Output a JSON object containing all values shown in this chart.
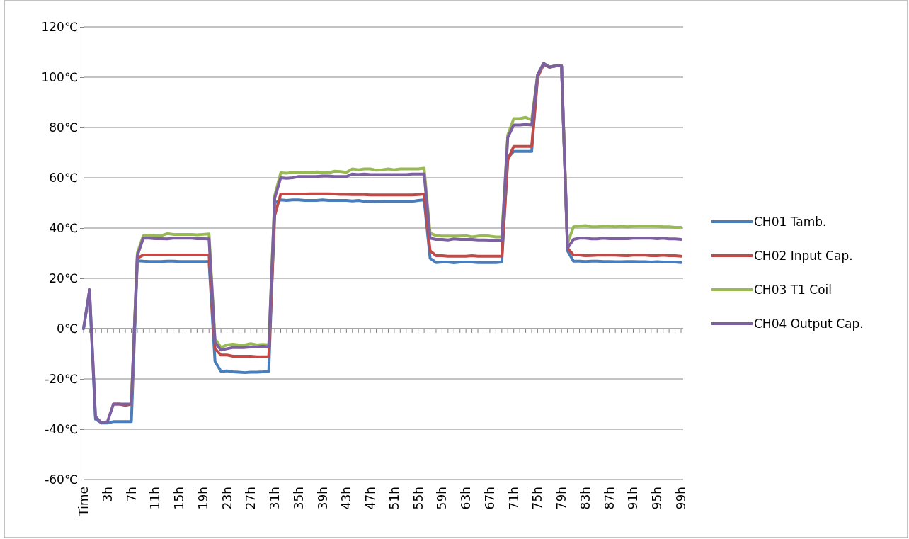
{
  "chart_data": {
    "type": "line",
    "categories": [
      "Time",
      null,
      null,
      null,
      "3h",
      null,
      null,
      null,
      "7h",
      null,
      null,
      null,
      "11h",
      null,
      null,
      null,
      "15h",
      null,
      null,
      null,
      "19h",
      null,
      null,
      null,
      "23h",
      null,
      null,
      null,
      "27h",
      null,
      null,
      null,
      "31h",
      null,
      null,
      null,
      "35h",
      null,
      null,
      null,
      "39h",
      null,
      null,
      null,
      "43h",
      null,
      null,
      null,
      "47h",
      null,
      null,
      null,
      "51h",
      null,
      null,
      null,
      "55h",
      null,
      null,
      null,
      "59h",
      null,
      null,
      null,
      "63h",
      null,
      null,
      null,
      "67h",
      null,
      null,
      null,
      "71h",
      null,
      null,
      null,
      "75h",
      null,
      null,
      null,
      "79h",
      null,
      null,
      null,
      "83h",
      null,
      null,
      null,
      "87h",
      null,
      null,
      null,
      "91h",
      null,
      null,
      null,
      "95h",
      null,
      null,
      null,
      "99h"
    ],
    "series": [
      {
        "name": "CH01 Tamb.",
        "color": "#4a7ebb",
        "values": [
          0,
          15,
          -36,
          -37.5,
          -37.5,
          -37,
          -37,
          -37,
          -37,
          27,
          26.8,
          26.7,
          26.7,
          26.7,
          26.8,
          26.8,
          26.7,
          26.7,
          26.7,
          26.7,
          26.7,
          26.7,
          -13,
          -17,
          -16.8,
          -17.2,
          -17.3,
          -17.5,
          -17.3,
          -17.3,
          -17.2,
          -17,
          50,
          51.2,
          51,
          51.2,
          51.2,
          51,
          51,
          51,
          51.2,
          51,
          51,
          51,
          51,
          50.8,
          51,
          50.6,
          50.6,
          50.5,
          50.6,
          50.6,
          50.6,
          50.6,
          50.6,
          50.6,
          51,
          51.2,
          28,
          26.3,
          26.5,
          26.5,
          26.2,
          26.5,
          26.5,
          26.5,
          26.3,
          26.3,
          26.3,
          26.3,
          26.5,
          68,
          70.5,
          70.5,
          70.5,
          70.5,
          101,
          105,
          104,
          104.5,
          104.5,
          31,
          26.8,
          26.8,
          26.7,
          26.8,
          26.8,
          26.7,
          26.7,
          26.6,
          26.6,
          26.7,
          26.7,
          26.6,
          26.6,
          26.5,
          26.6,
          26.5,
          26.5,
          26.5,
          26.3
        ]
      },
      {
        "name": "CH02 Input Cap.",
        "color": "#be4b48",
        "values": [
          null,
          null,
          null,
          null,
          null,
          -30,
          -30,
          -30.5,
          -30,
          28,
          29.3,
          29.3,
          29.3,
          29.3,
          29.3,
          29.3,
          29.3,
          29.3,
          29.3,
          29.3,
          29.3,
          29.3,
          -8,
          -10.5,
          -10.5,
          -11,
          -11,
          -11,
          -11,
          -11.2,
          -11.2,
          -11.2,
          45,
          53.5,
          53.5,
          53.5,
          53.5,
          53.5,
          53.6,
          53.6,
          53.6,
          53.6,
          53.5,
          53.4,
          53.4,
          53.3,
          53.3,
          53.3,
          53.2,
          53.2,
          53.2,
          53.2,
          53.2,
          53.2,
          53.2,
          53.2,
          53.3,
          53.5,
          31,
          29,
          29,
          28.8,
          28.8,
          28.8,
          28.8,
          29,
          28.8,
          28.8,
          28.8,
          28.8,
          28.8,
          67,
          72.5,
          72.5,
          72.5,
          72.5,
          100,
          105,
          104,
          104.5,
          104.5,
          32,
          29.3,
          29.3,
          29,
          29.1,
          29.2,
          29.2,
          29.2,
          29.2,
          29.1,
          29,
          29.2,
          29.2,
          29.2,
          29,
          29,
          29.2,
          29,
          29,
          28.8
        ]
      },
      {
        "name": "CH03 T1 Coil",
        "color": "#98b954",
        "values": [
          null,
          null,
          null,
          null,
          null,
          null,
          null,
          null,
          -30,
          30,
          37,
          37.2,
          37,
          37,
          37.8,
          37.5,
          37.5,
          37.5,
          37.5,
          37.3,
          37.5,
          37.7,
          -4,
          -7.5,
          -6.5,
          -6.2,
          -6.5,
          -6.5,
          -6,
          -6.5,
          -6.3,
          -6.5,
          53,
          62,
          61.8,
          62.2,
          62.2,
          62,
          62,
          62.3,
          62.2,
          62,
          62.6,
          62.5,
          62.2,
          63.5,
          63.2,
          63.5,
          63.5,
          63,
          63.2,
          63.5,
          63.2,
          63.5,
          63.5,
          63.5,
          63.5,
          63.8,
          38,
          37,
          36.8,
          36.8,
          36.8,
          36.8,
          37,
          36.5,
          36.8,
          37,
          36.8,
          36.5,
          36.5,
          77,
          83.5,
          83.5,
          84,
          83,
          101,
          105.5,
          104,
          104.5,
          104.5,
          34,
          40.5,
          40.8,
          41,
          40.5,
          40.5,
          40.7,
          40.7,
          40.5,
          40.7,
          40.5,
          40.7,
          40.8,
          40.8,
          40.8,
          40.7,
          40.5,
          40.5,
          40.3,
          40.3
        ]
      },
      {
        "name": "CH04 Output Cap.",
        "color": "#7d60a0",
        "values": [
          0,
          15.5,
          -35,
          -37.5,
          -37,
          -30,
          -30,
          -30,
          -30,
          29,
          36,
          36,
          35.8,
          35.8,
          35.7,
          36,
          36,
          36,
          36,
          35.8,
          35.8,
          35.7,
          -5.5,
          -8.5,
          -8,
          -7.5,
          -7.5,
          -7.5,
          -7.3,
          -7.3,
          -7,
          -7.3,
          52,
          60,
          59.8,
          60,
          60.5,
          60.5,
          60.5,
          60.5,
          60.7,
          60.7,
          60.5,
          60.5,
          60.5,
          61.5,
          61.3,
          61.5,
          61.3,
          61.3,
          61.3,
          61.3,
          61.3,
          61.3,
          61.3,
          61.5,
          61.5,
          61.5,
          36,
          35.5,
          35.5,
          35.3,
          35.7,
          35.5,
          35.5,
          35.5,
          35.3,
          35.3,
          35.2,
          35,
          35,
          76,
          81,
          81,
          81.2,
          81,
          101,
          105.5,
          104,
          104.5,
          104.5,
          32,
          35.5,
          36,
          36,
          35.7,
          35.7,
          36,
          35.8,
          35.8,
          35.8,
          35.8,
          36,
          36,
          36,
          36,
          35.8,
          36,
          35.7,
          35.7,
          35.5
        ]
      }
    ],
    "ylim": [
      -60,
      120
    ],
    "yticks": [
      {
        "value": -60,
        "label": "-60℃"
      },
      {
        "value": -40,
        "label": "-40℃"
      },
      {
        "value": -20,
        "label": "-20℃"
      },
      {
        "value": 0,
        "label": "0℃"
      },
      {
        "value": 20,
        "label": "20℃"
      },
      {
        "value": 40,
        "label": "40℃"
      },
      {
        "value": 60,
        "label": "60℃"
      },
      {
        "value": 80,
        "label": "80℃"
      },
      {
        "value": 100,
        "label": "100℃"
      },
      {
        "value": 120,
        "label": "120℃"
      }
    ],
    "grid": "y",
    "legend": "right",
    "marker": "none",
    "line_style": "solid"
  }
}
